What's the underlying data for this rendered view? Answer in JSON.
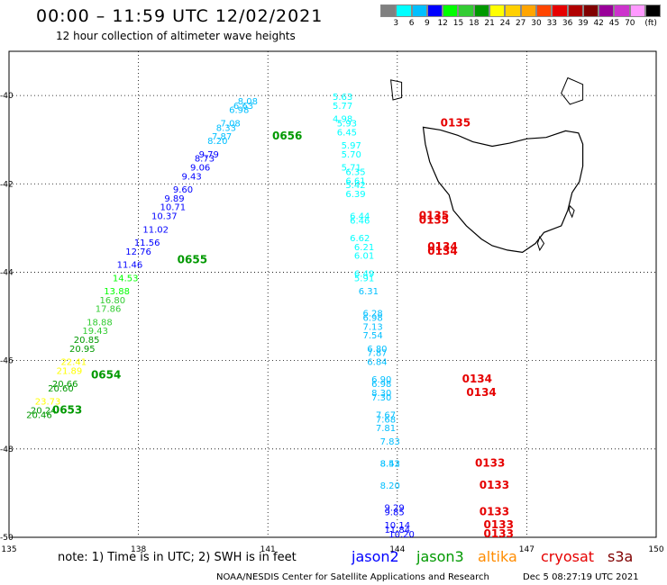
{
  "header": {
    "title": "00:00 – 11:59 UTC 12/02/2021",
    "subtitle": "12 hour collection of altimeter wave heights"
  },
  "legend": {
    "colors": [
      "#808080",
      "#00ffff",
      "#00bfff",
      "#0000ff",
      "#00ff00",
      "#33cc33",
      "#009900",
      "#ffff00",
      "#ffd000",
      "#ffa500",
      "#ff4500",
      "#e60000",
      "#b00000",
      "#800000",
      "#990099",
      "#cc33cc",
      "#ff99ff",
      "#000000"
    ],
    "ticks": [
      "3",
      "6",
      "9",
      "12",
      "15",
      "18",
      "21",
      "24",
      "27",
      "30",
      "33",
      "36",
      "39",
      "42",
      "45",
      "70",
      "(ft)"
    ]
  },
  "axes": {
    "x_ticks": [
      "135",
      "138",
      "141",
      "144",
      "147",
      "150"
    ],
    "y_ticks": [
      "-40",
      "-42",
      "-44",
      "-46",
      "-48",
      "-50"
    ]
  },
  "chart_data": {
    "type": "scatter",
    "title": "00:00 – 11:59 UTC 12/02/2021",
    "subtitle": "12 hour collection of altimeter wave heights",
    "xlim": [
      135,
      150
    ],
    "ylim": [
      -50,
      -39.0
    ],
    "grid": true,
    "tracks": [
      {
        "satellite": "jason3",
        "time_labels": [
          {
            "text": "0656",
            "lon": 141.1,
            "lat": -41.0
          },
          {
            "text": "0655",
            "lon": 138.9,
            "lat": -43.8
          },
          {
            "text": "0654",
            "lon": 136.9,
            "lat": -46.4
          },
          {
            "text": "0653",
            "lon": 136.0,
            "lat": -47.2
          }
        ],
        "points": [
          {
            "lon": 140.3,
            "lat": -40.2,
            "v": "8.08",
            "color": "#00bfff"
          },
          {
            "lon": 140.2,
            "lat": -40.3,
            "v": "6.63",
            "color": "#00bfff"
          },
          {
            "lon": 140.1,
            "lat": -40.4,
            "v": "6.98",
            "color": "#00bfff"
          },
          {
            "lon": 139.9,
            "lat": -40.7,
            "v": "7.08",
            "color": "#00bfff"
          },
          {
            "lon": 139.8,
            "lat": -40.8,
            "v": "8.33",
            "color": "#00bfff"
          },
          {
            "lon": 139.7,
            "lat": -41.0,
            "v": "7.87",
            "color": "#00bfff"
          },
          {
            "lon": 139.6,
            "lat": -41.1,
            "v": "8.20",
            "color": "#00bfff"
          },
          {
            "lon": 139.4,
            "lat": -41.4,
            "v": "9.79",
            "color": "#0000ff"
          },
          {
            "lon": 139.3,
            "lat": -41.5,
            "v": "8.73",
            "color": "#0000ff"
          },
          {
            "lon": 139.2,
            "lat": -41.7,
            "v": "9.06",
            "color": "#0000ff"
          },
          {
            "lon": 139.0,
            "lat": -41.9,
            "v": "9.43",
            "color": "#0000ff"
          },
          {
            "lon": 138.8,
            "lat": -42.2,
            "v": "9.60",
            "color": "#0000ff"
          },
          {
            "lon": 138.6,
            "lat": -42.4,
            "v": "9.89",
            "color": "#0000ff"
          },
          {
            "lon": 138.5,
            "lat": -42.6,
            "v": "10.71",
            "color": "#0000ff"
          },
          {
            "lon": 138.3,
            "lat": -42.8,
            "v": "10.37",
            "color": "#0000ff"
          },
          {
            "lon": 138.1,
            "lat": -43.1,
            "v": "11.02",
            "color": "#0000ff"
          },
          {
            "lon": 137.9,
            "lat": -43.4,
            "v": "11.56",
            "color": "#0000ff"
          },
          {
            "lon": 137.7,
            "lat": -43.6,
            "v": "12.76",
            "color": "#0000ff"
          },
          {
            "lon": 137.5,
            "lat": -43.9,
            "v": "11.46",
            "color": "#0000ff"
          },
          {
            "lon": 137.4,
            "lat": -44.2,
            "v": "14.53",
            "color": "#00ff00"
          },
          {
            "lon": 137.2,
            "lat": -44.5,
            "v": "13.88",
            "color": "#00ff00"
          },
          {
            "lon": 137.1,
            "lat": -44.7,
            "v": "16.80",
            "color": "#33cc33"
          },
          {
            "lon": 137.0,
            "lat": -44.9,
            "v": "17.86",
            "color": "#33cc33"
          },
          {
            "lon": 136.8,
            "lat": -45.2,
            "v": "18.88",
            "color": "#33cc33"
          },
          {
            "lon": 136.7,
            "lat": -45.4,
            "v": "19.43",
            "color": "#33cc33"
          },
          {
            "lon": 136.5,
            "lat": -45.6,
            "v": "20.85",
            "color": "#009900"
          },
          {
            "lon": 136.4,
            "lat": -45.8,
            "v": "20.95",
            "color": "#009900"
          },
          {
            "lon": 136.2,
            "lat": -46.1,
            "v": "22.41",
            "color": "#ffff00"
          },
          {
            "lon": 136.1,
            "lat": -46.3,
            "v": "21.89",
            "color": "#ffff00"
          },
          {
            "lon": 136.0,
            "lat": -46.6,
            "v": "20.66",
            "color": "#009900"
          },
          {
            "lon": 135.9,
            "lat": -46.7,
            "v": "20.60",
            "color": "#009900"
          },
          {
            "lon": 135.6,
            "lat": -47.0,
            "v": "23.73",
            "color": "#ffff00"
          },
          {
            "lon": 135.5,
            "lat": -47.2,
            "v": "20.24",
            "color": "#009900"
          },
          {
            "lon": 135.4,
            "lat": -47.3,
            "v": "20.46",
            "color": "#009900"
          }
        ]
      },
      {
        "satellite": "cryosat",
        "time_labels": [
          {
            "text": "0135",
            "lon": 145.0,
            "lat": -40.7
          },
          {
            "text": "0135",
            "lon": 144.5,
            "lat": -42.8
          },
          {
            "text": "0135",
            "lon": 144.5,
            "lat": -42.9
          },
          {
            "text": "0134",
            "lon": 144.7,
            "lat": -43.5
          },
          {
            "text": "0134",
            "lon": 144.7,
            "lat": -43.6
          },
          {
            "text": "0134",
            "lon": 145.5,
            "lat": -46.5
          },
          {
            "text": "0134",
            "lon": 145.6,
            "lat": -46.8
          },
          {
            "text": "0133",
            "lon": 145.8,
            "lat": -48.4
          },
          {
            "text": "0133",
            "lon": 145.9,
            "lat": -48.9
          },
          {
            "text": "0133",
            "lon": 145.9,
            "lat": -49.5
          },
          {
            "text": "0133",
            "lon": 146.0,
            "lat": -49.8
          },
          {
            "text": "0133",
            "lon": 146.0,
            "lat": -50.0
          }
        ],
        "points": [
          {
            "lon": 142.5,
            "lat": -40.1,
            "v": "5.63",
            "color": "#00ffff"
          },
          {
            "lon": 142.5,
            "lat": -40.3,
            "v": "5.77",
            "color": "#00ffff"
          },
          {
            "lon": 142.5,
            "lat": -40.6,
            "v": "4.98",
            "color": "#00ffff"
          },
          {
            "lon": 142.6,
            "lat": -40.7,
            "v": "5.93",
            "color": "#00ffff"
          },
          {
            "lon": 142.6,
            "lat": -40.9,
            "v": "6.45",
            "color": "#00ffff"
          },
          {
            "lon": 142.7,
            "lat": -41.2,
            "v": "5.97",
            "color": "#00ffff"
          },
          {
            "lon": 142.7,
            "lat": -41.4,
            "v": "5.70",
            "color": "#00ffff"
          },
          {
            "lon": 142.7,
            "lat": -41.7,
            "v": "5.71",
            "color": "#00ffff"
          },
          {
            "lon": 142.8,
            "lat": -41.8,
            "v": "6.35",
            "color": "#00ffff"
          },
          {
            "lon": 142.8,
            "lat": -42.0,
            "v": "6.61",
            "color": "#00ffff"
          },
          {
            "lon": 142.8,
            "lat": -42.1,
            "v": "5.42",
            "color": "#00ffff"
          },
          {
            "lon": 142.8,
            "lat": -42.3,
            "v": "6.39",
            "color": "#00ffff"
          },
          {
            "lon": 142.9,
            "lat": -42.8,
            "v": "6.44",
            "color": "#00ffff"
          },
          {
            "lon": 142.9,
            "lat": -42.9,
            "v": "6.46",
            "color": "#00ffff"
          },
          {
            "lon": 142.9,
            "lat": -43.3,
            "v": "6.62",
            "color": "#00ffff"
          },
          {
            "lon": 143.0,
            "lat": -43.5,
            "v": "6.21",
            "color": "#00ffff"
          },
          {
            "lon": 143.0,
            "lat": -43.7,
            "v": "6.01",
            "color": "#00ffff"
          },
          {
            "lon": 143.0,
            "lat": -44.1,
            "v": "6.49",
            "color": "#00ffff"
          },
          {
            "lon": 143.0,
            "lat": -44.2,
            "v": "5.91",
            "color": "#00ffff"
          },
          {
            "lon": 143.1,
            "lat": -44.5,
            "v": "6.31",
            "color": "#00bfff"
          },
          {
            "lon": 143.2,
            "lat": -45.0,
            "v": "6.28",
            "color": "#00bfff"
          },
          {
            "lon": 143.2,
            "lat": -45.1,
            "v": "6.98",
            "color": "#00bfff"
          },
          {
            "lon": 143.2,
            "lat": -45.3,
            "v": "7.13",
            "color": "#00bfff"
          },
          {
            "lon": 143.2,
            "lat": -45.5,
            "v": "7.54",
            "color": "#00bfff"
          },
          {
            "lon": 143.3,
            "lat": -45.8,
            "v": "6.80",
            "color": "#00bfff"
          },
          {
            "lon": 143.3,
            "lat": -45.9,
            "v": "7.87",
            "color": "#00bfff"
          },
          {
            "lon": 143.3,
            "lat": -46.1,
            "v": "6.84",
            "color": "#00bfff"
          },
          {
            "lon": 143.4,
            "lat": -46.5,
            "v": "6.90",
            "color": "#00bfff"
          },
          {
            "lon": 143.4,
            "lat": -46.6,
            "v": "6.98",
            "color": "#00bfff"
          },
          {
            "lon": 143.4,
            "lat": -46.8,
            "v": "8.30",
            "color": "#00bfff"
          },
          {
            "lon": 143.4,
            "lat": -46.9,
            "v": "7.30",
            "color": "#00bfff"
          },
          {
            "lon": 143.5,
            "lat": -47.3,
            "v": "7.67",
            "color": "#00bfff"
          },
          {
            "lon": 143.5,
            "lat": -47.4,
            "v": "7.68",
            "color": "#00bfff"
          },
          {
            "lon": 143.5,
            "lat": -47.6,
            "v": "7.81",
            "color": "#00bfff"
          },
          {
            "lon": 143.6,
            "lat": -47.9,
            "v": "7.83",
            "color": "#00bfff"
          },
          {
            "lon": 143.6,
            "lat": -48.4,
            "v": "8.42",
            "color": "#00bfff"
          },
          {
            "lon": 143.6,
            "lat": -48.4,
            "v": "8.53",
            "color": "#00bfff"
          },
          {
            "lon": 143.6,
            "lat": -48.9,
            "v": "8.20",
            "color": "#00bfff"
          },
          {
            "lon": 143.7,
            "lat": -49.4,
            "v": "9.29",
            "color": "#0000ff"
          },
          {
            "lon": 143.7,
            "lat": -49.5,
            "v": "9.85",
            "color": "#0000ff"
          },
          {
            "lon": 143.7,
            "lat": -49.8,
            "v": "10.14",
            "color": "#0000ff"
          },
          {
            "lon": 143.7,
            "lat": -49.9,
            "v": "11.84",
            "color": "#0000ff"
          },
          {
            "lon": 143.8,
            "lat": -50.0,
            "v": "10.20",
            "color": "#0000ff"
          }
        ]
      }
    ]
  },
  "footer": {
    "note": "note: 1) Time is in UTC; 2) SWH is in feet",
    "satellites": [
      {
        "name": "jason2",
        "color": "#0000ff"
      },
      {
        "name": "jason3",
        "color": "#009900"
      },
      {
        "name": "altika",
        "color": "#ff8c00"
      },
      {
        "name": "cryosat",
        "color": "#e60000"
      },
      {
        "name": "s3a",
        "color": "#800000"
      }
    ],
    "credit": "NOAA/NESDIS Center for Satellite Applications and Research",
    "timestamp": "Dec  5 08:27:19 UTC 2021"
  }
}
